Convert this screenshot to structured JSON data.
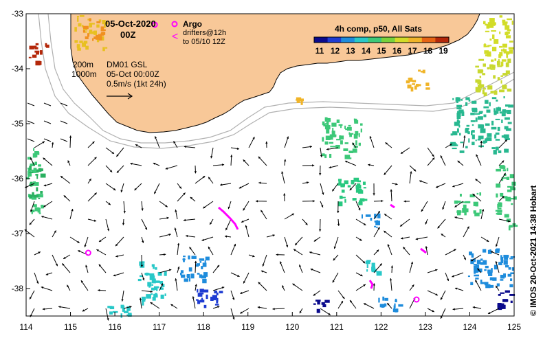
{
  "header": {
    "date": "05-Oct-2020",
    "hour": "00Z"
  },
  "legend": {
    "argo_label": "Argo",
    "drifters_line1": "drifters@12h",
    "drifters_line2": "to 05/10 12Z",
    "sst_title": "4h comp, p50, All Sats",
    "colorbar_ticks": [
      "11",
      "12",
      "13",
      "14",
      "15",
      "16",
      "17",
      "18",
      "19"
    ],
    "colorbar_colors": [
      "#0a0a8c",
      "#1e3cd2",
      "#1e8cdc",
      "#28c8c8",
      "#3cc878",
      "#78d23c",
      "#d2dc28",
      "#f0b428",
      "#e66414",
      "#b4280a"
    ],
    "argo_color": "#ff00ff",
    "land_color": "#f8c898"
  },
  "annotations": {
    "isobath_200": "200m",
    "isobath_1000": "1000m",
    "model_name": "DM01 GSL",
    "model_time": "05-Oct 00:00Z",
    "scale_label": "0.5m/s (1kt 24h)",
    "credit": "© IMOS 20-Oct-2021 14:38 Hobart"
  },
  "axes": {
    "x_ticks": [
      "114",
      "115",
      "116",
      "117",
      "118",
      "119",
      "120",
      "121",
      "122",
      "123",
      "124",
      "125"
    ],
    "y_ticks": [
      "-33",
      "-34",
      "-35",
      "-36",
      "-37",
      "-38"
    ],
    "lon_range": [
      114,
      125
    ],
    "lat_range": [
      -38.5,
      -33
    ]
  },
  "argo_floats": [
    {
      "lon": 115.4,
      "lat": -37.35
    },
    {
      "lon": 122.8,
      "lat": -38.2
    },
    {
      "lon": 116.9,
      "lat": -33.2
    }
  ]
}
